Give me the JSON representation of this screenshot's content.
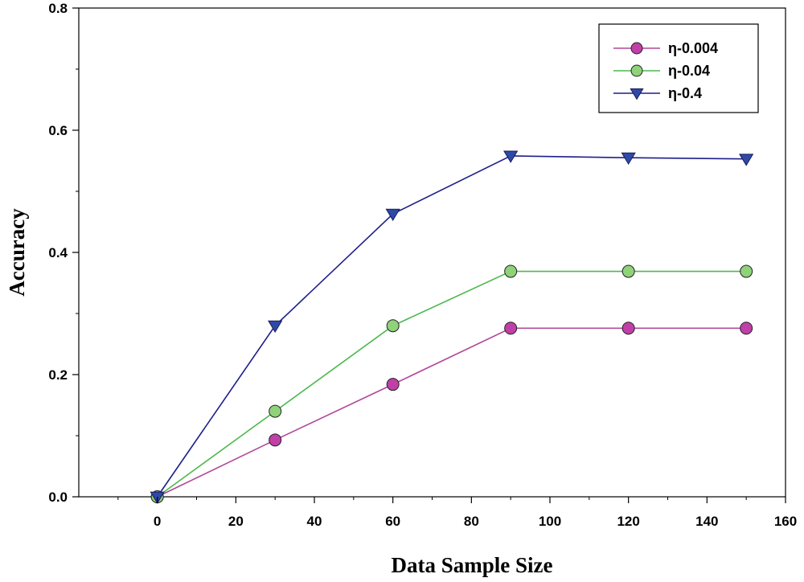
{
  "chart_data": {
    "type": "line",
    "title": "",
    "xlabel": "Data Sample Size",
    "ylabel": "Accuracy",
    "xlim": [
      -20,
      160
    ],
    "ylim": [
      0,
      0.8
    ],
    "xticks": [
      0,
      20,
      40,
      60,
      80,
      100,
      120,
      140,
      160
    ],
    "yticks": [
      "0.0",
      "0.2",
      "0.4",
      "0.6",
      "0.8"
    ],
    "grid": false,
    "legend_position": "top-right",
    "series": [
      {
        "name": "η-0.004",
        "marker": "circle",
        "line_color": "#b0479a",
        "marker_color": "#c040a8",
        "x": [
          0,
          30,
          60,
          90,
          120,
          150
        ],
        "y": [
          0,
          0.093,
          0.184,
          0.276,
          0.276,
          0.276
        ]
      },
      {
        "name": "η-0.04",
        "marker": "circle",
        "line_color": "#4db84d",
        "marker_color": "#8fd27a",
        "x": [
          0,
          30,
          60,
          90,
          120,
          150
        ],
        "y": [
          0,
          0.14,
          0.28,
          0.369,
          0.369,
          0.369
        ]
      },
      {
        "name": "η-0.4",
        "marker": "triangle-down",
        "line_color": "#1e1e8c",
        "marker_color": "#2d4aa8",
        "x": [
          0,
          30,
          60,
          90,
          120,
          150
        ],
        "y": [
          0,
          0.28,
          0.463,
          0.558,
          0.555,
          0.553
        ]
      }
    ]
  }
}
